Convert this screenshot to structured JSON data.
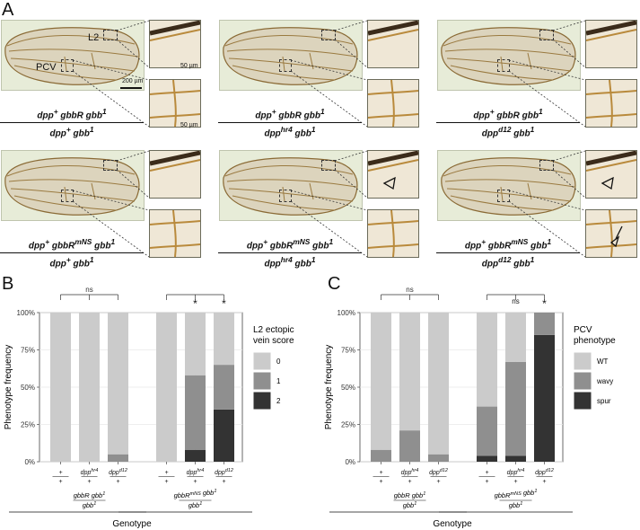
{
  "panel_labels": {
    "a": "A",
    "b": "B",
    "c": "C"
  },
  "panel_a": {
    "inset_labels": {
      "l2": "L2",
      "pcv": "PCV"
    },
    "scale_bars": {
      "wing": "200 µm",
      "inset": "50 µm"
    },
    "genotypes": [
      {
        "num": "dpp+ gbbR gbb1",
        "den": "dpp+ gbb1"
      },
      {
        "num": "dpp+ gbbR gbb1",
        "den": "dpphr4 gbb1"
      },
      {
        "num": "dpp+ gbbR gbb1",
        "den": "dppd12 gbb1"
      },
      {
        "num": "dpp+ gbbRmNS gbb1",
        "den": "dpp+ gbb1"
      },
      {
        "num": "dpp+ gbbRmNS gbb1",
        "den": "dpphr4 gbb1"
      },
      {
        "num": "dpp+ gbbRmNS gbb1",
        "den": "dppd12 gbb1"
      }
    ]
  },
  "chart_data": [
    {
      "type": "bar",
      "stacked": true,
      "ylabel": "Phenotype frequency",
      "xlabel": "Genotype",
      "ylim": [
        0,
        100
      ],
      "yticks": [
        "0%",
        "25%",
        "50%",
        "75%",
        "100%"
      ],
      "categories": [
        "+/+",
        "dpphr4/+",
        "dppd12/+",
        "+/+",
        "dpphr4/+",
        "dppd12/+"
      ],
      "groups": [
        {
          "label": "gbbR gbb1 / gbb1",
          "members": [
            0,
            1,
            2
          ]
        },
        {
          "label": "gbbRmNS gbb1 / gbb1",
          "members": [
            3,
            4,
            5
          ]
        }
      ],
      "significance": [
        {
          "bracket_from": 0,
          "to": [
            0,
            1,
            2
          ],
          "label": "ns"
        },
        {
          "bracket_from": 3,
          "to": [
            4,
            5
          ],
          "labels": [
            "*",
            "*"
          ]
        }
      ],
      "legend": {
        "title": "L2 ectopic vein score",
        "position": "right"
      },
      "series": [
        {
          "name": "0",
          "color": "#cbcbcb",
          "values": [
            100,
            100,
            95,
            100,
            42,
            35
          ]
        },
        {
          "name": "1",
          "color": "#8f8f8f",
          "values": [
            0,
            0,
            5,
            0,
            50,
            30
          ]
        },
        {
          "name": "2",
          "color": "#333333",
          "values": [
            0,
            0,
            0,
            0,
            8,
            35
          ]
        }
      ]
    },
    {
      "type": "bar",
      "stacked": true,
      "ylabel": "Phenotype frequency",
      "xlabel": "Genotype",
      "ylim": [
        0,
        100
      ],
      "yticks": [
        "0%",
        "25%",
        "50%",
        "75%",
        "100%"
      ],
      "categories": [
        "+/+",
        "dpphr4/+",
        "dppd12/+",
        "+/+",
        "dpphr4/+",
        "dppd12/+"
      ],
      "groups": [
        {
          "label": "gbbR gbb1 / gbb1",
          "members": [
            0,
            1,
            2
          ]
        },
        {
          "label": "gbbRmNS gbb1 / gbb1",
          "members": [
            3,
            4,
            5
          ]
        }
      ],
      "significance": [
        {
          "bracket_from": 0,
          "to": [
            0,
            1,
            2
          ],
          "label": "ns"
        },
        {
          "bracket_from": 3,
          "to": [
            4,
            5
          ],
          "labels": [
            "ns",
            "*"
          ]
        }
      ],
      "legend": {
        "title": "PCV phenotype",
        "position": "right"
      },
      "series": [
        {
          "name": "WT",
          "color": "#cbcbcb",
          "values": [
            92,
            79,
            95,
            63,
            33,
            0
          ]
        },
        {
          "name": "wavy",
          "color": "#8f8f8f",
          "values": [
            8,
            21,
            5,
            33,
            63,
            15
          ]
        },
        {
          "name": "spur",
          "color": "#333333",
          "values": [
            0,
            0,
            0,
            4,
            4,
            85
          ]
        }
      ]
    }
  ]
}
